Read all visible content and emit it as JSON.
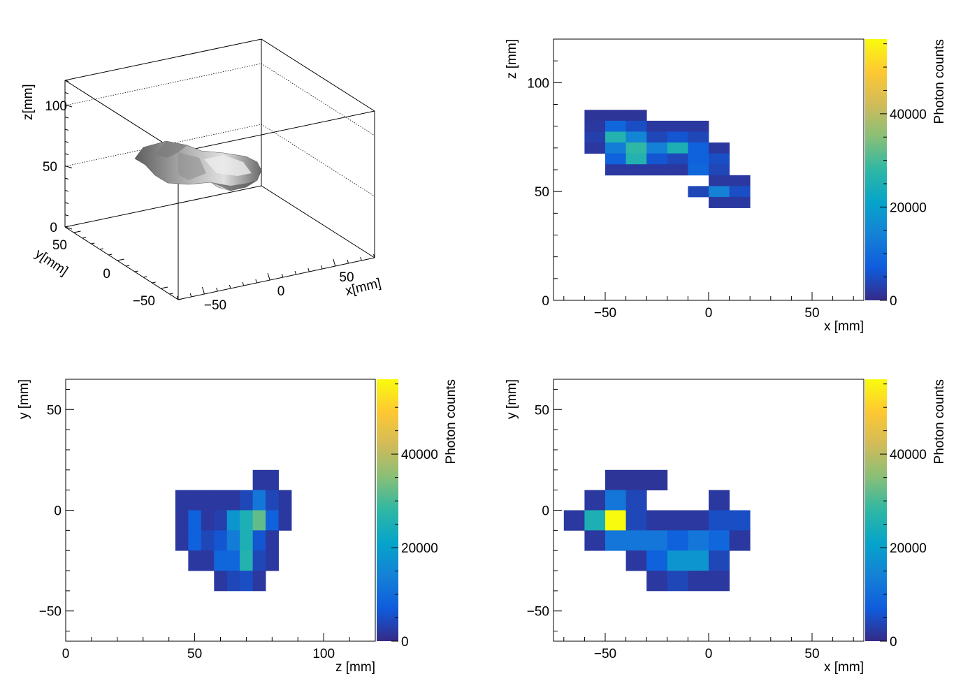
{
  "colors": {
    "frame": "#000000",
    "surface_light": "#d8d8d8",
    "surface_dark": "#606060",
    "background": "#ffffff"
  },
  "colormap": {
    "label": "Photon counts",
    "stops": [
      "#352a87",
      "#0f5cdd",
      "#1481d6",
      "#06a4ca",
      "#2eb7a4",
      "#87bf77",
      "#d1bb59",
      "#fec832",
      "#f9fb0e"
    ],
    "max": 56000
  },
  "chart_data": [
    {
      "type": "surface3d",
      "xlabel": "x[mm]",
      "ylabel": "y[mm]",
      "zlabel": "z[mm]",
      "xlim": [
        -75,
        75
      ],
      "ylim": [
        -65,
        65
      ],
      "zlim": [
        0,
        120
      ],
      "xticks": [
        "−50",
        "0",
        "50"
      ],
      "yticks": [
        "50",
        "0",
        "−50"
      ],
      "zticks": [
        "0",
        "50",
        "100"
      ],
      "blob": {
        "x": [
          -60,
          25
        ],
        "y": [
          -30,
          20
        ],
        "z": [
          45,
          90
        ]
      }
    },
    {
      "type": "heatmap",
      "xlabel": "x [mm]",
      "ylabel": "z [mm]",
      "zlabel": "Photon counts",
      "xlim": [
        -75,
        75
      ],
      "ylim": [
        0,
        120
      ],
      "zlim": [
        0,
        56000
      ],
      "bin_width": 10,
      "bin_height": 5,
      "xticks": [
        -50,
        0,
        50
      ],
      "xtick_labels": [
        "−50",
        "0",
        "50"
      ],
      "yticks": [
        0,
        50,
        100
      ],
      "ytick_labels": [
        "0",
        "50",
        "100"
      ],
      "zticks": [
        0,
        20000,
        40000
      ],
      "ztick_labels": [
        "0",
        "20000",
        "40000"
      ],
      "bins": [
        [
          -55,
          85,
          1500
        ],
        [
          -45,
          85,
          1500
        ],
        [
          -35,
          85,
          1500
        ],
        [
          -55,
          80,
          2000
        ],
        [
          -45,
          80,
          9000
        ],
        [
          -35,
          80,
          5000
        ],
        [
          -25,
          80,
          2000
        ],
        [
          -15,
          80,
          2000
        ],
        [
          -5,
          80,
          2000
        ],
        [
          -55,
          75,
          3000
        ],
        [
          -45,
          75,
          26000
        ],
        [
          -35,
          75,
          15000
        ],
        [
          -25,
          75,
          4000
        ],
        [
          -15,
          75,
          6000
        ],
        [
          -5,
          75,
          4000
        ],
        [
          -55,
          70,
          2000
        ],
        [
          -45,
          70,
          13000
        ],
        [
          -35,
          70,
          28000
        ],
        [
          -25,
          70,
          14000
        ],
        [
          -15,
          70,
          25000
        ],
        [
          -5,
          70,
          8000
        ],
        [
          5,
          70,
          2000
        ],
        [
          -45,
          65,
          8000
        ],
        [
          -35,
          65,
          26000
        ],
        [
          -25,
          65,
          6000
        ],
        [
          -15,
          65,
          4000
        ],
        [
          -5,
          65,
          8000
        ],
        [
          5,
          65,
          5000
        ],
        [
          -45,
          60,
          2000
        ],
        [
          -35,
          60,
          2000
        ],
        [
          -25,
          60,
          2000
        ],
        [
          -15,
          60,
          2000
        ],
        [
          -5,
          60,
          9000
        ],
        [
          5,
          60,
          4000
        ],
        [
          5,
          55,
          2000
        ],
        [
          15,
          55,
          2000
        ],
        [
          -5,
          50,
          4000
        ],
        [
          5,
          50,
          14000
        ],
        [
          15,
          50,
          5000
        ],
        [
          5,
          45,
          2000
        ],
        [
          15,
          45,
          2000
        ]
      ]
    },
    {
      "type": "heatmap",
      "xlabel": "z [mm]",
      "ylabel": "y [mm]",
      "zlabel": "Photon counts",
      "xlim": [
        0,
        120
      ],
      "ylim": [
        -65,
        65
      ],
      "zlim": [
        0,
        56000
      ],
      "bin_width": 5,
      "bin_height": 10,
      "xticks": [
        0,
        50,
        100
      ],
      "xtick_labels": [
        "0",
        "50",
        "100"
      ],
      "yticks": [
        -50,
        0,
        50
      ],
      "ytick_labels": [
        "−50",
        "0",
        "50"
      ],
      "zticks": [
        0,
        20000,
        40000
      ],
      "ztick_labels": [
        "0",
        "20000",
        "40000"
      ],
      "bins": [
        [
          75,
          15,
          2000
        ],
        [
          80,
          15,
          2000
        ],
        [
          45,
          5,
          2000
        ],
        [
          50,
          5,
          2000
        ],
        [
          55,
          5,
          2000
        ],
        [
          60,
          5,
          2000
        ],
        [
          65,
          5,
          2000
        ],
        [
          70,
          5,
          4000
        ],
        [
          75,
          5,
          12000
        ],
        [
          80,
          5,
          4000
        ],
        [
          85,
          5,
          2000
        ],
        [
          45,
          -5,
          2000
        ],
        [
          50,
          -5,
          8000
        ],
        [
          55,
          -5,
          2000
        ],
        [
          60,
          -5,
          3000
        ],
        [
          65,
          -5,
          18000
        ],
        [
          70,
          -5,
          25000
        ],
        [
          75,
          -5,
          32000
        ],
        [
          80,
          -5,
          8000
        ],
        [
          85,
          -5,
          2000
        ],
        [
          45,
          -15,
          2000
        ],
        [
          50,
          -15,
          8000
        ],
        [
          55,
          -15,
          4000
        ],
        [
          60,
          -15,
          6000
        ],
        [
          65,
          -15,
          13000
        ],
        [
          70,
          -15,
          25000
        ],
        [
          75,
          -15,
          6000
        ],
        [
          80,
          -15,
          2000
        ],
        [
          50,
          -25,
          2000
        ],
        [
          55,
          -25,
          2000
        ],
        [
          60,
          -25,
          9000
        ],
        [
          65,
          -25,
          9000
        ],
        [
          70,
          -25,
          26000
        ],
        [
          75,
          -25,
          4000
        ],
        [
          80,
          -25,
          2000
        ],
        [
          60,
          -35,
          2000
        ],
        [
          65,
          -35,
          4000
        ],
        [
          70,
          -35,
          5000
        ],
        [
          75,
          -35,
          2000
        ]
      ]
    },
    {
      "type": "heatmap",
      "xlabel": "x [mm]",
      "ylabel": "y [mm]",
      "zlabel": "Photon counts",
      "xlim": [
        -75,
        75
      ],
      "ylim": [
        -65,
        65
      ],
      "zlim": [
        0,
        56000
      ],
      "bin_width": 10,
      "bin_height": 10,
      "xticks": [
        -50,
        0,
        50
      ],
      "xtick_labels": [
        "−50",
        "0",
        "50"
      ],
      "yticks": [
        -50,
        0,
        50
      ],
      "ytick_labels": [
        "−50",
        "0",
        "50"
      ],
      "zticks": [
        0,
        20000,
        40000
      ],
      "ztick_labels": [
        "0",
        "20000",
        "40000"
      ],
      "bins": [
        [
          -45,
          15,
          1500
        ],
        [
          -35,
          15,
          1500
        ],
        [
          -25,
          15,
          1500
        ],
        [
          -55,
          5,
          2000
        ],
        [
          -45,
          5,
          12000
        ],
        [
          -35,
          5,
          4000
        ],
        [
          5,
          5,
          2000
        ],
        [
          -65,
          -5,
          2000
        ],
        [
          -55,
          -5,
          25000
        ],
        [
          -45,
          -5,
          56000
        ],
        [
          -35,
          -5,
          4000
        ],
        [
          -25,
          -5,
          2000
        ],
        [
          -15,
          -5,
          2000
        ],
        [
          -5,
          -5,
          2000
        ],
        [
          5,
          -5,
          5000
        ],
        [
          15,
          -5,
          5000
        ],
        [
          -55,
          -15,
          2000
        ],
        [
          -45,
          -15,
          12000
        ],
        [
          -35,
          -15,
          12000
        ],
        [
          -25,
          -15,
          12000
        ],
        [
          -15,
          -15,
          8000
        ],
        [
          -5,
          -15,
          12000
        ],
        [
          5,
          -15,
          9000
        ],
        [
          15,
          -15,
          2000
        ],
        [
          -35,
          -25,
          2000
        ],
        [
          -25,
          -25,
          8000
        ],
        [
          -15,
          -25,
          18000
        ],
        [
          -5,
          -25,
          18000
        ],
        [
          5,
          -25,
          4000
        ],
        [
          -25,
          -35,
          2000
        ],
        [
          -15,
          -35,
          4000
        ],
        [
          -5,
          -35,
          2000
        ],
        [
          5,
          -35,
          2000
        ]
      ]
    }
  ]
}
